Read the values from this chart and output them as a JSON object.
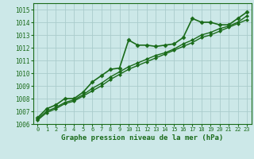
{
  "title": "Graphe pression niveau de la mer (hPa)",
  "background_color": "#cce8e8",
  "grid_color": "#aacccc",
  "line_color": "#1a6b1a",
  "xlim": [
    -0.5,
    23.5
  ],
  "ylim": [
    1006,
    1015.5
  ],
  "yticks": [
    1006,
    1007,
    1008,
    1009,
    1010,
    1011,
    1012,
    1013,
    1014,
    1015
  ],
  "xticks": [
    0,
    1,
    2,
    3,
    4,
    5,
    6,
    7,
    8,
    9,
    10,
    11,
    12,
    13,
    14,
    15,
    16,
    17,
    18,
    19,
    20,
    21,
    22,
    23
  ],
  "series": [
    [
      1006.5,
      1007.2,
      1007.5,
      1008.0,
      1008.0,
      1008.5,
      1009.3,
      1009.8,
      1010.3,
      1010.4,
      1012.6,
      1012.2,
      1012.2,
      1012.1,
      1012.2,
      1012.3,
      1012.8,
      1014.3,
      1014.0,
      1014.0,
      1013.8,
      1013.8,
      1014.3,
      1014.8
    ],
    [
      1006.4,
      1007.0,
      1007.3,
      1007.7,
      1007.9,
      1008.3,
      1008.8,
      1009.2,
      1009.7,
      1010.1,
      1010.5,
      1010.8,
      1011.1,
      1011.4,
      1011.6,
      1011.9,
      1012.3,
      1012.6,
      1013.0,
      1013.2,
      1013.5,
      1013.7,
      1014.0,
      1014.5
    ],
    [
      1006.3,
      1006.9,
      1007.2,
      1007.6,
      1007.8,
      1008.2,
      1008.6,
      1009.0,
      1009.5,
      1009.9,
      1010.3,
      1010.6,
      1010.9,
      1011.2,
      1011.5,
      1011.8,
      1012.1,
      1012.4,
      1012.8,
      1013.0,
      1013.3,
      1013.6,
      1013.9,
      1014.2
    ]
  ],
  "linewidths": [
    1.2,
    1.0,
    1.0
  ],
  "linestyles": [
    "-",
    "-",
    "-"
  ],
  "markers": [
    true,
    true,
    true
  ],
  "marker_style": "D",
  "marker_sizes": [
    2.5,
    2.0,
    2.0
  ],
  "tick_fontsize": 5.5,
  "xlabel_fontsize": 6.5
}
